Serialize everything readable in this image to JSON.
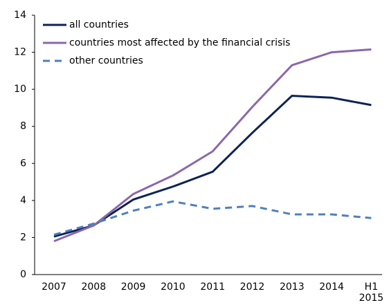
{
  "chart_data": {
    "type": "line",
    "categories": [
      "2007",
      "2008",
      "2009",
      "2010",
      "2011",
      "2012",
      "2013",
      "2014",
      "H1 2015"
    ],
    "series": [
      {
        "name": "all countries",
        "color": "#0d2257",
        "style": "solid",
        "values": [
          2.05,
          2.65,
          4.05,
          4.75,
          5.55,
          7.65,
          9.65,
          9.55,
          9.15
        ]
      },
      {
        "name": "countries most affected by the financial crisis",
        "color": "#8a67ab",
        "style": "solid",
        "values": [
          1.8,
          2.65,
          4.35,
          5.35,
          6.65,
          9.05,
          11.3,
          12.0,
          12.15
        ]
      },
      {
        "name": "other countries",
        "color": "#4f7fbf",
        "style": "dashed",
        "values": [
          2.15,
          2.75,
          3.45,
          3.95,
          3.55,
          3.7,
          3.25,
          3.25,
          3.05
        ]
      }
    ],
    "ylim": [
      0,
      14
    ],
    "yticks": [
      0,
      2,
      4,
      6,
      8,
      10,
      12,
      14
    ],
    "grid": false,
    "legend": "upper left"
  }
}
